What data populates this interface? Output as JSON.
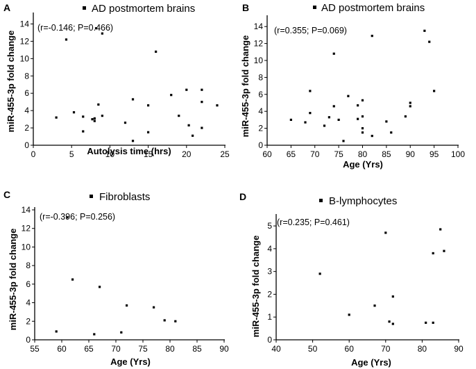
{
  "chart_data": [
    {
      "panel": "A",
      "type": "scatter",
      "title": "AD postmortem brains",
      "annotation": "(r=-0.146; P=0.466)",
      "xlabel": "Autolysis time (hrs)",
      "ylabel": "miR-455-3p fold change",
      "xlim": [
        0,
        25
      ],
      "ylim": [
        0,
        15
      ],
      "xticks": [
        "0",
        "5",
        "10",
        "15",
        "20",
        "25"
      ],
      "yticks": [
        "0",
        "2",
        "4",
        "6",
        "8",
        "10",
        "12",
        "14"
      ],
      "points": [
        {
          "x": 3.0,
          "y": 3.2
        },
        {
          "x": 4.3,
          "y": 12.2
        },
        {
          "x": 5.3,
          "y": 3.8
        },
        {
          "x": 6.5,
          "y": 3.3
        },
        {
          "x": 6.5,
          "y": 1.6
        },
        {
          "x": 7.7,
          "y": 3.0
        },
        {
          "x": 8.0,
          "y": 2.8
        },
        {
          "x": 8.0,
          "y": 3.1
        },
        {
          "x": 8.2,
          "y": 13.5
        },
        {
          "x": 8.5,
          "y": 4.7
        },
        {
          "x": 9.0,
          "y": 12.9
        },
        {
          "x": 9.0,
          "y": 3.4
        },
        {
          "x": 12.0,
          "y": 2.6
        },
        {
          "x": 13.0,
          "y": 5.3
        },
        {
          "x": 13.0,
          "y": 0.5
        },
        {
          "x": 15.0,
          "y": 4.6
        },
        {
          "x": 15.0,
          "y": 1.5
        },
        {
          "x": 16.0,
          "y": 10.8
        },
        {
          "x": 18.0,
          "y": 5.8
        },
        {
          "x": 19.0,
          "y": 3.4
        },
        {
          "x": 20.0,
          "y": 6.4
        },
        {
          "x": 20.3,
          "y": 2.3
        },
        {
          "x": 20.8,
          "y": 1.1
        },
        {
          "x": 22.0,
          "y": 6.4
        },
        {
          "x": 22.0,
          "y": 5.0
        },
        {
          "x": 22.0,
          "y": 2.0
        },
        {
          "x": 24.0,
          "y": 4.6
        }
      ]
    },
    {
      "panel": "B",
      "type": "scatter",
      "title": "AD postmortem brains",
      "annotation": "(r=0.355; P=0.069)",
      "xlabel": "Age (Yrs)",
      "ylabel": "miR-455-3p fold change",
      "xlim": [
        60,
        100
      ],
      "ylim": [
        0,
        15
      ],
      "xticks": [
        "60",
        "65",
        "70",
        "75",
        "80",
        "85",
        "90",
        "95",
        "100"
      ],
      "yticks": [
        "0",
        "2",
        "4",
        "6",
        "8",
        "10",
        "12",
        "14"
      ],
      "points": [
        {
          "x": 65,
          "y": 3.0
        },
        {
          "x": 68,
          "y": 2.7
        },
        {
          "x": 69,
          "y": 6.4
        },
        {
          "x": 69,
          "y": 3.8
        },
        {
          "x": 72,
          "y": 2.3
        },
        {
          "x": 73,
          "y": 3.3
        },
        {
          "x": 74,
          "y": 4.6
        },
        {
          "x": 74,
          "y": 10.8
        },
        {
          "x": 75,
          "y": 3.0
        },
        {
          "x": 76,
          "y": 0.5
        },
        {
          "x": 77,
          "y": 5.8
        },
        {
          "x": 79,
          "y": 4.7
        },
        {
          "x": 79,
          "y": 3.1
        },
        {
          "x": 80,
          "y": 5.3
        },
        {
          "x": 80,
          "y": 3.4
        },
        {
          "x": 80,
          "y": 2.0
        },
        {
          "x": 80,
          "y": 1.5
        },
        {
          "x": 82,
          "y": 12.9
        },
        {
          "x": 82,
          "y": 1.1
        },
        {
          "x": 85,
          "y": 2.8
        },
        {
          "x": 86,
          "y": 1.5
        },
        {
          "x": 89,
          "y": 3.4
        },
        {
          "x": 90,
          "y": 5.0
        },
        {
          "x": 90,
          "y": 4.6
        },
        {
          "x": 93,
          "y": 13.5
        },
        {
          "x": 94,
          "y": 12.2
        },
        {
          "x": 95,
          "y": 6.4
        }
      ]
    },
    {
      "panel": "C",
      "type": "scatter",
      "title": "Fibroblasts",
      "annotation": "(r=-0.396; P=0.256)",
      "xlabel": "Age (Yrs)",
      "ylabel": "miR-455-3p fold change",
      "xlim": [
        55,
        90
      ],
      "ylim": [
        0,
        14
      ],
      "xticks": [
        "55",
        "60",
        "65",
        "70",
        "75",
        "80",
        "85",
        "90"
      ],
      "yticks": [
        "0",
        "2",
        "4",
        "6",
        "8",
        "10",
        "12",
        "14"
      ],
      "points": [
        {
          "x": 59,
          "y": 0.9
        },
        {
          "x": 61,
          "y": 13.2
        },
        {
          "x": 62,
          "y": 6.5
        },
        {
          "x": 66,
          "y": 0.6
        },
        {
          "x": 67,
          "y": 5.7
        },
        {
          "x": 71,
          "y": 0.8
        },
        {
          "x": 72,
          "y": 3.7
        },
        {
          "x": 77,
          "y": 3.5
        },
        {
          "x": 79,
          "y": 2.1
        },
        {
          "x": 81,
          "y": 2.0
        }
      ]
    },
    {
      "panel": "D",
      "type": "scatter",
      "title": "B-lymphocytes",
      "annotation": "(r=0.235; P=0.461)",
      "xlabel": "Age (Yrs)",
      "ylabel": "miR-455-3p fold change",
      "xlim": [
        40,
        90
      ],
      "ylim": [
        0,
        5.4
      ],
      "xticks": [
        "40",
        "50",
        "60",
        "70",
        "80",
        "90"
      ],
      "yticks": [
        "0",
        "1",
        "2",
        "3",
        "4",
        "5"
      ],
      "points": [
        {
          "x": 52,
          "y": 2.9
        },
        {
          "x": 60,
          "y": 1.1
        },
        {
          "x": 67,
          "y": 1.5
        },
        {
          "x": 70,
          "y": 4.7
        },
        {
          "x": 71,
          "y": 0.8
        },
        {
          "x": 72,
          "y": 0.7
        },
        {
          "x": 72,
          "y": 1.9
        },
        {
          "x": 81,
          "y": 0.75
        },
        {
          "x": 83,
          "y": 0.75
        },
        {
          "x": 83,
          "y": 3.8
        },
        {
          "x": 85,
          "y": 4.85
        },
        {
          "x": 86,
          "y": 3.9
        }
      ]
    }
  ]
}
